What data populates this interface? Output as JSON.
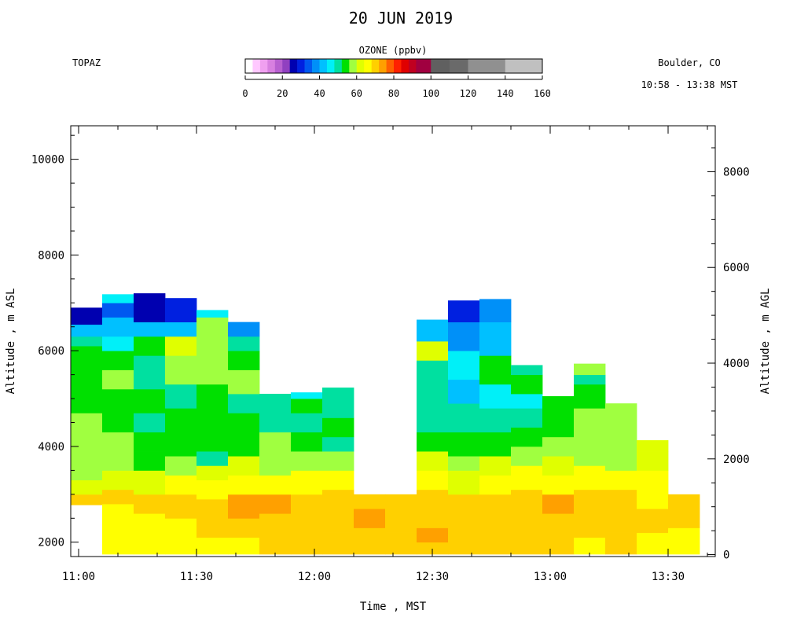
{
  "header": {
    "date": "20 JUN 2019",
    "site": "TOPAZ",
    "location": "Boulder, CO",
    "time_range": "10:58 - 13:38 MST"
  },
  "colorbar": {
    "title": "OZONE (ppbv)",
    "tick_labels": [
      "0",
      "20",
      "40",
      "60",
      "80",
      "100",
      "120",
      "140",
      "160"
    ],
    "tick_values": [
      0,
      20,
      40,
      60,
      80,
      100,
      120,
      140,
      160
    ],
    "bins": [
      {
        "from": 0,
        "to": 4,
        "color": "#ffffff"
      },
      {
        "from": 4,
        "to": 8,
        "color": "#ffc8ff"
      },
      {
        "from": 8,
        "to": 12,
        "color": "#f0a0f0"
      },
      {
        "from": 12,
        "to": 16,
        "color": "#d880e0"
      },
      {
        "from": 16,
        "to": 20,
        "color": "#b860d0"
      },
      {
        "from": 20,
        "to": 24,
        "color": "#9040c0"
      },
      {
        "from": 24,
        "to": 28,
        "color": "#0000b0"
      },
      {
        "from": 28,
        "to": 32,
        "color": "#0020e0"
      },
      {
        "from": 32,
        "to": 36,
        "color": "#0058f0"
      },
      {
        "from": 36,
        "to": 40,
        "color": "#0090f8"
      },
      {
        "from": 40,
        "to": 44,
        "color": "#00c0ff"
      },
      {
        "from": 44,
        "to": 48,
        "color": "#00f0f8"
      },
      {
        "from": 48,
        "to": 52,
        "color": "#00e0a0"
      },
      {
        "from": 52,
        "to": 56,
        "color": "#00e000"
      },
      {
        "from": 56,
        "to": 60,
        "color": "#a0ff40"
      },
      {
        "from": 60,
        "to": 64,
        "color": "#e0ff00"
      },
      {
        "from": 64,
        "to": 68,
        "color": "#ffff00"
      },
      {
        "from": 68,
        "to": 72,
        "color": "#ffd000"
      },
      {
        "from": 72,
        "to": 76,
        "color": "#ffa000"
      },
      {
        "from": 76,
        "to": 80,
        "color": "#ff6000"
      },
      {
        "from": 80,
        "to": 84,
        "color": "#ff2000"
      },
      {
        "from": 84,
        "to": 88,
        "color": "#e00000"
      },
      {
        "from": 88,
        "to": 92,
        "color": "#c00020"
      },
      {
        "from": 92,
        "to": 100,
        "color": "#a00040"
      },
      {
        "from": 100,
        "to": 110,
        "color": "#606060"
      },
      {
        "from": 110,
        "to": 120,
        "color": "#6a6a6a"
      },
      {
        "from": 120,
        "to": 140,
        "color": "#909090"
      },
      {
        "from": 140,
        "to": 160,
        "color": "#c0c0c0"
      }
    ]
  },
  "chart_data": {
    "type": "heatmap",
    "xlabel": "Time , MST",
    "ylabel_left": "Altitude , m ASL",
    "ylabel_right": "Altitude , m AGL",
    "x_range_min": [
      658,
      822
    ],
    "y_range_asl": [
      1700,
      10700
    ],
    "surface_offset_m": 1740,
    "x_tick_labels": [
      "11:00",
      "11:30",
      "12:00",
      "12:30",
      "13:00",
      "13:30"
    ],
    "x_tick_minutes": [
      660,
      690,
      720,
      750,
      780,
      810
    ],
    "y_left_tick_labels": [
      "2000",
      "4000",
      "6000",
      "8000",
      "10000"
    ],
    "y_left_ticks": [
      2000,
      4000,
      6000,
      8000,
      10000
    ],
    "y_right_tick_labels": [
      "0",
      "2000",
      "4000",
      "6000",
      "8000"
    ],
    "y_right_ticks": [
      0,
      2000,
      4000,
      6000,
      8000
    ],
    "profiles": [
      {
        "t0": 658,
        "t1": 666,
        "layers": [
          [
            2780,
            3000,
            68
          ],
          [
            3000,
            3300,
            62
          ],
          [
            3300,
            3600,
            58
          ],
          [
            3600,
            3900,
            56
          ],
          [
            3900,
            4300,
            58
          ],
          [
            4300,
            4700,
            56
          ],
          [
            4700,
            5300,
            53
          ],
          [
            5300,
            5800,
            52
          ],
          [
            5800,
            6100,
            54
          ],
          [
            6100,
            6300,
            50
          ],
          [
            6300,
            6550,
            40
          ],
          [
            6550,
            6900,
            26
          ]
        ]
      },
      {
        "t0": 666,
        "t1": 674,
        "layers": [
          [
            1750,
            1900,
            66
          ],
          [
            1900,
            2300,
            64
          ],
          [
            2300,
            2800,
            66
          ],
          [
            2800,
            3100,
            68
          ],
          [
            3100,
            3500,
            62
          ],
          [
            3500,
            3900,
            58
          ],
          [
            3900,
            4300,
            56
          ],
          [
            4300,
            4700,
            54
          ],
          [
            4700,
            5200,
            53
          ],
          [
            5200,
            5600,
            56
          ],
          [
            5600,
            6000,
            52
          ],
          [
            6000,
            6300,
            46
          ],
          [
            6300,
            6700,
            40
          ],
          [
            6700,
            7000,
            32
          ],
          [
            7000,
            7180,
            44
          ]
        ]
      },
      {
        "t0": 674,
        "t1": 682,
        "layers": [
          [
            1750,
            2000,
            66
          ],
          [
            2000,
            2600,
            67
          ],
          [
            2600,
            3000,
            68
          ],
          [
            3000,
            3500,
            62
          ],
          [
            3500,
            3900,
            54
          ],
          [
            3900,
            4300,
            53
          ],
          [
            4300,
            4700,
            50
          ],
          [
            4700,
            5200,
            53
          ],
          [
            5200,
            5900,
            50
          ],
          [
            5900,
            6300,
            54
          ],
          [
            6300,
            6600,
            40
          ],
          [
            6600,
            7200,
            26
          ]
        ]
      },
      {
        "t0": 682,
        "t1": 690,
        "layers": [
          [
            1750,
            2000,
            66
          ],
          [
            2000,
            2500,
            67
          ],
          [
            2500,
            3000,
            68
          ],
          [
            3000,
            3400,
            64
          ],
          [
            3400,
            3800,
            56
          ],
          [
            3800,
            4200,
            53
          ],
          [
            4200,
            4800,
            53
          ],
          [
            4800,
            5300,
            50
          ],
          [
            5300,
            5900,
            58
          ],
          [
            5900,
            6300,
            60
          ],
          [
            6300,
            6600,
            40
          ],
          [
            6600,
            7100,
            30
          ]
        ]
      },
      {
        "t0": 690,
        "t1": 698,
        "layers": [
          [
            1750,
            2100,
            67
          ],
          [
            2100,
            2500,
            68
          ],
          [
            2500,
            2900,
            69
          ],
          [
            2900,
            3300,
            66
          ],
          [
            3300,
            3600,
            62
          ],
          [
            3600,
            3900,
            50
          ],
          [
            3900,
            4400,
            53
          ],
          [
            4400,
            5300,
            53
          ],
          [
            5300,
            5800,
            58
          ],
          [
            5800,
            6300,
            56
          ],
          [
            6300,
            6700,
            57
          ],
          [
            6700,
            6850,
            44
          ]
        ]
      },
      {
        "t0": 698,
        "t1": 706,
        "layers": [
          [
            1750,
            2100,
            67
          ],
          [
            2100,
            2500,
            69
          ],
          [
            2500,
            3000,
            72
          ],
          [
            3000,
            3400,
            66
          ],
          [
            3400,
            3800,
            62
          ],
          [
            3800,
            4300,
            54
          ],
          [
            4300,
            4700,
            53
          ],
          [
            4700,
            5100,
            50
          ],
          [
            5100,
            5600,
            57
          ],
          [
            5600,
            6000,
            54
          ],
          [
            6000,
            6300,
            50
          ],
          [
            6300,
            6600,
            38
          ]
        ]
      },
      {
        "t0": 706,
        "t1": 714,
        "layers": [
          [
            1750,
            2100,
            68
          ],
          [
            2100,
            2600,
            70
          ],
          [
            2600,
            3000,
            72
          ],
          [
            3000,
            3400,
            66
          ],
          [
            3400,
            3900,
            58
          ],
          [
            3900,
            4300,
            56
          ],
          [
            4300,
            4800,
            50
          ],
          [
            4800,
            5100,
            50
          ]
        ]
      },
      {
        "t0": 714,
        "t1": 722,
        "layers": [
          [
            1750,
            2100,
            68
          ],
          [
            2100,
            2600,
            70
          ],
          [
            2600,
            3000,
            71
          ],
          [
            3000,
            3500,
            64
          ],
          [
            3500,
            3900,
            58
          ],
          [
            3900,
            4300,
            54
          ],
          [
            4300,
            4700,
            50
          ],
          [
            4700,
            5000,
            53
          ],
          [
            5000,
            5130,
            44
          ]
        ]
      },
      {
        "t0": 722,
        "t1": 730,
        "layers": [
          [
            1750,
            2200,
            70
          ],
          [
            2200,
            2700,
            71
          ],
          [
            2700,
            3100,
            70
          ],
          [
            3100,
            3500,
            64
          ],
          [
            3500,
            3900,
            58
          ],
          [
            3900,
            4200,
            50
          ],
          [
            4200,
            4600,
            53
          ],
          [
            4600,
            5000,
            50
          ],
          [
            5000,
            5230,
            50
          ]
        ]
      },
      {
        "t0": 730,
        "t1": 738,
        "layers": [
          [
            1750,
            2300,
            71
          ],
          [
            2300,
            2700,
            72
          ],
          [
            2700,
            3000,
            68
          ]
        ]
      },
      {
        "t0": 738,
        "t1": 746,
        "layers": [
          [
            1750,
            2200,
            70
          ],
          [
            2200,
            2600,
            71
          ],
          [
            2600,
            3000,
            68
          ]
        ]
      },
      {
        "t0": 746,
        "t1": 754,
        "layers": [
          [
            1750,
            2000,
            70
          ],
          [
            2000,
            2300,
            73
          ],
          [
            2300,
            2700,
            70
          ],
          [
            2700,
            3100,
            71
          ],
          [
            3100,
            3500,
            66
          ],
          [
            3500,
            3900,
            62
          ],
          [
            3900,
            4300,
            54
          ],
          [
            4300,
            4800,
            50
          ],
          [
            4800,
            5300,
            50
          ],
          [
            5300,
            5800,
            50
          ],
          [
            5800,
            6200,
            60
          ],
          [
            6200,
            6650,
            40
          ]
        ]
      },
      {
        "t0": 754,
        "t1": 762,
        "layers": [
          [
            1750,
            2100,
            68
          ],
          [
            2100,
            2600,
            70
          ],
          [
            2600,
            3000,
            68
          ],
          [
            3000,
            3500,
            62
          ],
          [
            3500,
            3800,
            58
          ],
          [
            3800,
            4300,
            53
          ],
          [
            4300,
            4900,
            50
          ],
          [
            4900,
            5400,
            40
          ],
          [
            5400,
            6000,
            44
          ],
          [
            6000,
            6600,
            38
          ],
          [
            6600,
            7050,
            30
          ]
        ]
      },
      {
        "t0": 762,
        "t1": 770,
        "layers": [
          [
            1750,
            2100,
            68
          ],
          [
            2100,
            2600,
            70
          ],
          [
            2600,
            3000,
            68
          ],
          [
            3000,
            3400,
            64
          ],
          [
            3400,
            3800,
            60
          ],
          [
            3800,
            4300,
            53
          ],
          [
            4300,
            4800,
            50
          ],
          [
            4800,
            5300,
            44
          ],
          [
            5300,
            5900,
            53
          ],
          [
            5900,
            6600,
            42
          ],
          [
            6600,
            7080,
            36
          ]
        ]
      },
      {
        "t0": 770,
        "t1": 778,
        "layers": [
          [
            1750,
            2100,
            68
          ],
          [
            2100,
            2700,
            69
          ],
          [
            2700,
            3100,
            70
          ],
          [
            3100,
            3600,
            64
          ],
          [
            3600,
            4000,
            58
          ],
          [
            4000,
            4400,
            53
          ],
          [
            4400,
            4800,
            50
          ],
          [
            4800,
            5100,
            46
          ],
          [
            5100,
            5500,
            53
          ],
          [
            5500,
            5700,
            50
          ]
        ]
      },
      {
        "t0": 778,
        "t1": 786,
        "layers": [
          [
            1750,
            2100,
            68
          ],
          [
            2100,
            2600,
            70
          ],
          [
            2600,
            3000,
            72
          ],
          [
            3000,
            3400,
            66
          ],
          [
            3400,
            3800,
            62
          ],
          [
            3800,
            4200,
            58
          ],
          [
            4200,
            4700,
            54
          ],
          [
            4700,
            5050,
            53
          ]
        ]
      },
      {
        "t0": 786,
        "t1": 794,
        "layers": [
          [
            1750,
            2100,
            67
          ],
          [
            2100,
            2700,
            70
          ],
          [
            2700,
            3100,
            70
          ],
          [
            3100,
            3600,
            66
          ],
          [
            3600,
            4100,
            56
          ],
          [
            4100,
            4800,
            58
          ],
          [
            4800,
            5300,
            53
          ],
          [
            5300,
            5500,
            50
          ],
          [
            5500,
            5730,
            58
          ]
        ]
      },
      {
        "t0": 794,
        "t1": 802,
        "layers": [
          [
            1750,
            2200,
            68
          ],
          [
            2200,
            2700,
            70
          ],
          [
            2700,
            3100,
            68
          ],
          [
            3100,
            3500,
            64
          ],
          [
            3500,
            3900,
            58
          ],
          [
            3900,
            4900,
            58
          ]
        ]
      },
      {
        "t0": 802,
        "t1": 810,
        "layers": [
          [
            1750,
            2200,
            67
          ],
          [
            2200,
            2700,
            69
          ],
          [
            2700,
            3100,
            66
          ],
          [
            3100,
            3500,
            64
          ],
          [
            3500,
            3900,
            62
          ],
          [
            3900,
            4130,
            62
          ]
        ]
      },
      {
        "t0": 810,
        "t1": 818,
        "layers": [
          [
            1750,
            2300,
            67
          ],
          [
            2300,
            2700,
            68
          ],
          [
            2700,
            3000,
            68
          ]
        ]
      }
    ]
  }
}
